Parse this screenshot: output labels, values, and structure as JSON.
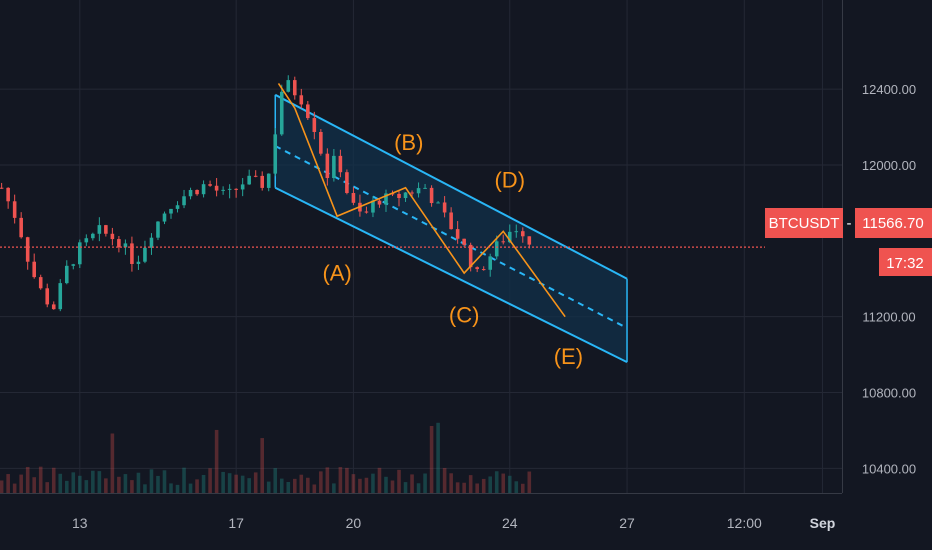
{
  "colors": {
    "background": "#131722",
    "grid": "#242835",
    "axis_text": "#b2b5be",
    "up": "#26a69a",
    "down": "#ef5350",
    "channel": "#29b6f6",
    "channel_fill": "#123049",
    "wave": "#f7931a",
    "price_line": "#ef5350",
    "badge": "#ef5350"
  },
  "symbol_label": "BTCUSDT",
  "price_label": "11566.70",
  "countdown_label": "17:32",
  "chart_data": {
    "type": "candlestick",
    "symbol": "BTCUSDT",
    "last_price": 11566.7,
    "y_ticks": [
      "12400.00",
      "12000.00",
      "11200.00",
      "10800.00",
      "10400.00"
    ],
    "x_ticks": [
      {
        "label": "13",
        "bold": false
      },
      {
        "label": "17",
        "bold": false
      },
      {
        "label": "20",
        "bold": false
      },
      {
        "label": "24",
        "bold": false
      },
      {
        "label": "27",
        "bold": false
      },
      {
        "label": "12:00",
        "bold": false
      },
      {
        "label": "Sep",
        "bold": true
      }
    ],
    "ylim": [
      10270,
      12870
    ],
    "xlim": [
      "2020-08-10T23:00",
      "2020-09-01T12:00"
    ],
    "grid": true,
    "price_path": [
      {
        "t": "2020-08-11T00:00",
        "p": 11880
      },
      {
        "t": "2020-08-11T10:00",
        "p": 11700
      },
      {
        "t": "2020-08-11T18:00",
        "p": 11450
      },
      {
        "t": "2020-08-12T02:00",
        "p": 11300
      },
      {
        "t": "2020-08-12T08:00",
        "p": 11250
      },
      {
        "t": "2020-08-12T16:00",
        "p": 11450
      },
      {
        "t": "2020-08-13T00:00",
        "p": 11560
      },
      {
        "t": "2020-08-13T12:00",
        "p": 11650
      },
      {
        "t": "2020-08-14T00:00",
        "p": 11600
      },
      {
        "t": "2020-08-14T10:00",
        "p": 11480
      },
      {
        "t": "2020-08-14T20:00",
        "p": 11650
      },
      {
        "t": "2020-08-15T06:00",
        "p": 11780
      },
      {
        "t": "2020-08-15T18:00",
        "p": 11850
      },
      {
        "t": "2020-08-16T06:00",
        "p": 11900
      },
      {
        "t": "2020-08-16T18:00",
        "p": 11830
      },
      {
        "t": "2020-08-17T06:00",
        "p": 11920
      },
      {
        "t": "2020-08-17T16:00",
        "p": 11900
      },
      {
        "t": "2020-08-17T22:00",
        "p": 11980
      },
      {
        "t": "2020-08-18T02:00",
        "p": 12380
      },
      {
        "t": "2020-08-18T08:00",
        "p": 12420
      },
      {
        "t": "2020-08-18T16:00",
        "p": 12350
      },
      {
        "t": "2020-08-19T00:00",
        "p": 12200
      },
      {
        "t": "2020-08-19T08:00",
        "p": 11950
      },
      {
        "t": "2020-08-19T14:00",
        "p": 12050
      },
      {
        "t": "2020-08-19T22:00",
        "p": 11800
      },
      {
        "t": "2020-08-20T06:00",
        "p": 11720
      },
      {
        "t": "2020-08-20T14:00",
        "p": 11820
      },
      {
        "t": "2020-08-21T00:00",
        "p": 11820
      },
      {
        "t": "2020-08-21T10:00",
        "p": 11860
      },
      {
        "t": "2020-08-21T20:00",
        "p": 11880
      },
      {
        "t": "2020-08-22T06:00",
        "p": 11750
      },
      {
        "t": "2020-08-22T18:00",
        "p": 11600
      },
      {
        "t": "2020-08-23T04:00",
        "p": 11420
      },
      {
        "t": "2020-08-23T14:00",
        "p": 11550
      },
      {
        "t": "2020-08-24T00:00",
        "p": 11650
      },
      {
        "t": "2020-08-24T06:00",
        "p": 11680
      },
      {
        "t": "2020-08-24T14:00",
        "p": 11566.7
      }
    ],
    "volume": {
      "ylim": [
        0,
        1000
      ]
    },
    "channel": {
      "upper": [
        {
          "t": "2020-08-18T00:00",
          "p": 12370
        },
        {
          "t": "2020-08-27T00:00",
          "p": 11400
        }
      ],
      "middle": [
        {
          "t": "2020-08-18T00:00",
          "p": 12100
        },
        {
          "t": "2020-08-27T00:00",
          "p": 11140
        }
      ],
      "lower": [
        {
          "t": "2020-08-18T00:00",
          "p": 11880
        },
        {
          "t": "2020-08-27T00:00",
          "p": 10960
        }
      ]
    },
    "wave_path": [
      {
        "t": "2020-08-18T02:00",
        "p": 12430
      },
      {
        "t": "2020-08-18T12:00",
        "p": 12300
      },
      {
        "t": "2020-08-19T14:00",
        "p": 11730
      },
      {
        "t": "2020-08-21T08:00",
        "p": 11880
      },
      {
        "t": "2020-08-22T20:00",
        "p": 11430
      },
      {
        "t": "2020-08-23T20:00",
        "p": 11650
      },
      {
        "t": "2020-08-25T10:00",
        "p": 11200
      }
    ],
    "wave_labels": [
      {
        "label": "(A)",
        "t": "2020-08-19T14:00",
        "p": 11390
      },
      {
        "label": "(B)",
        "t": "2020-08-21T10:00",
        "p": 12080
      },
      {
        "label": "(C)",
        "t": "2020-08-22T20:00",
        "p": 11170
      },
      {
        "label": "(D)",
        "t": "2020-08-24T00:00",
        "p": 11880
      },
      {
        "label": "(E)",
        "t": "2020-08-25T12:00",
        "p": 10950
      }
    ]
  }
}
